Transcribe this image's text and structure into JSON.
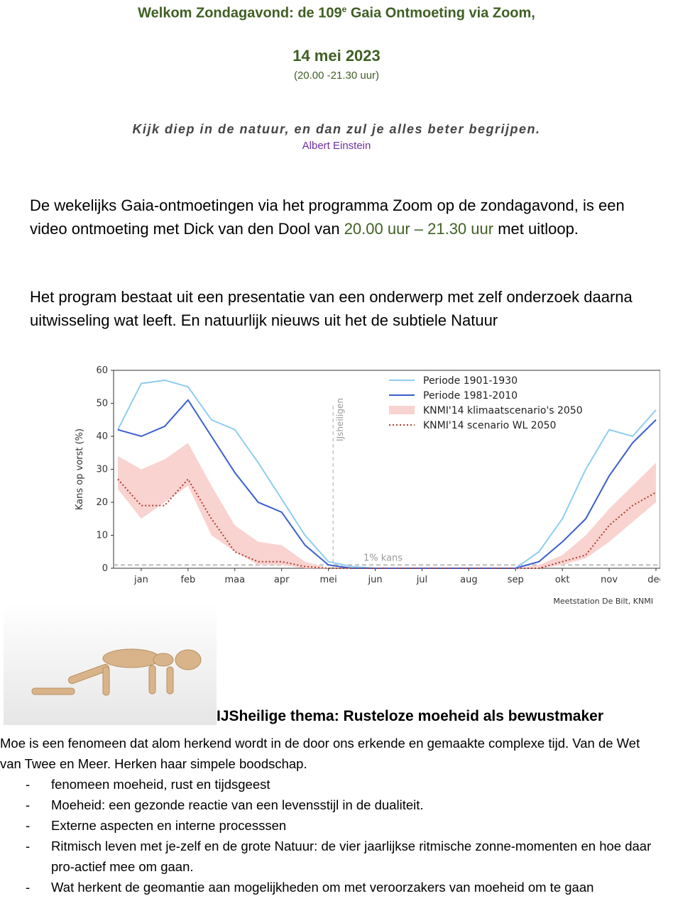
{
  "header": {
    "title": {
      "before": "Welkom Zondagavond: de 109",
      "sup": "e",
      "after": " Gaia Ontmoeting via Zoom,"
    },
    "date": "14 mei 2023",
    "time": "(20.00 -21.30 uur)"
  },
  "quote": {
    "text": "Kijk diep in de natuur, en dan zul je alles beter begrijpen.",
    "author": "Albert Einstein"
  },
  "intro": {
    "p1": {
      "before": "De wekelijks Gaia-ontmoetingen via het programma Zoom op de zondagavond, is een video ontmoeting met Dick van den Dool van ",
      "highlight": "20.00 uur – 21.30 uur",
      "after": " met uitloop."
    },
    "p2": "Het program bestaat uit een presentatie van een onderwerp met zelf onderzoek daarna uitwisseling wat leeft. En natuurlijk  nieuws uit het de subtiele Natuur"
  },
  "chart_data": {
    "type": "line",
    "y_label": "Kans op vorst (%)",
    "source": "Meetstation De Bilt, KNMI",
    "categories": [
      null,
      "jan",
      null,
      "feb",
      null,
      "maa",
      null,
      "apr",
      null,
      "mei",
      null,
      "jun",
      null,
      "jul",
      null,
      "aug",
      null,
      "sep",
      null,
      "okt",
      null,
      "nov",
      null,
      "dec"
    ],
    "ylim": [
      0,
      60
    ],
    "yticks": [
      0,
      10,
      20,
      30,
      40,
      50,
      60
    ],
    "annotations": {
      "threshold": {
        "value": 1,
        "label": "1% kans"
      },
      "marker": {
        "label": "IJsheiligen"
      }
    },
    "series": [
      {
        "name": "Periode 1901-1930",
        "color": "#8ecdf0",
        "style": "solid",
        "values": [
          42,
          56,
          57,
          55,
          45,
          42,
          32,
          21,
          10,
          2,
          0.5,
          0,
          0,
          0,
          0,
          0,
          0,
          0,
          5,
          15,
          30,
          42,
          40,
          48
        ]
      },
      {
        "name": "Periode 1981-2010",
        "color": "#3a5fcd",
        "style": "solid",
        "values": [
          42,
          40,
          43,
          51,
          40,
          29,
          20,
          17,
          7,
          1,
          0,
          0,
          0,
          0,
          0,
          0,
          0,
          0,
          2,
          8,
          15,
          28,
          38,
          45
        ]
      },
      {
        "name": "KNMI'14 klimaatscenario's 2050",
        "color": "#f9d3d0",
        "style": "band",
        "lower": [
          24,
          15,
          20,
          25,
          10,
          5,
          1,
          1,
          0,
          0,
          0,
          0,
          0,
          0,
          0,
          0,
          0,
          0,
          0,
          1,
          3,
          8,
          14,
          20
        ],
        "upper": [
          34,
          30,
          33,
          38,
          25,
          13,
          8,
          7,
          2,
          0,
          0,
          0,
          0,
          0,
          0,
          0,
          0,
          0,
          1,
          4,
          10,
          18,
          25,
          32
        ]
      },
      {
        "name": "KNMI'14 scenario WL 2050",
        "color": "#b03a2e",
        "style": "dotted",
        "values": [
          27,
          19,
          19,
          27,
          15,
          5,
          2,
          2,
          0.5,
          0,
          0,
          0,
          0,
          0,
          0,
          0,
          0,
          0,
          0,
          2,
          4,
          13,
          19,
          23
        ]
      }
    ]
  },
  "theme": {
    "heading": "IJSheilige thema: Rusteloze moeheid als bewustmaker",
    "body": "Moe is een fenomeen dat alom herkend wordt in de door ons erkende en gemaakte complexe tijd. Van de Wet van Twee en Meer. Herken haar simpele boodschap.",
    "items": [
      "fenomeen moeheid, rust en tijdsgeest",
      "Moeheid: een gezonde reactie van een levensstijl in de dualiteit.",
      "Externe aspecten en interne processsen",
      "Ritmisch leven met je-zelf en de grote Natuur: de vier jaarlijkse ritmische zonne-momenten en hoe daar pro-actief mee om gaan.",
      "Wat herkent de geomantie aan mogelijkheden om met veroorzakers van moeheid om te gaan"
    ]
  }
}
